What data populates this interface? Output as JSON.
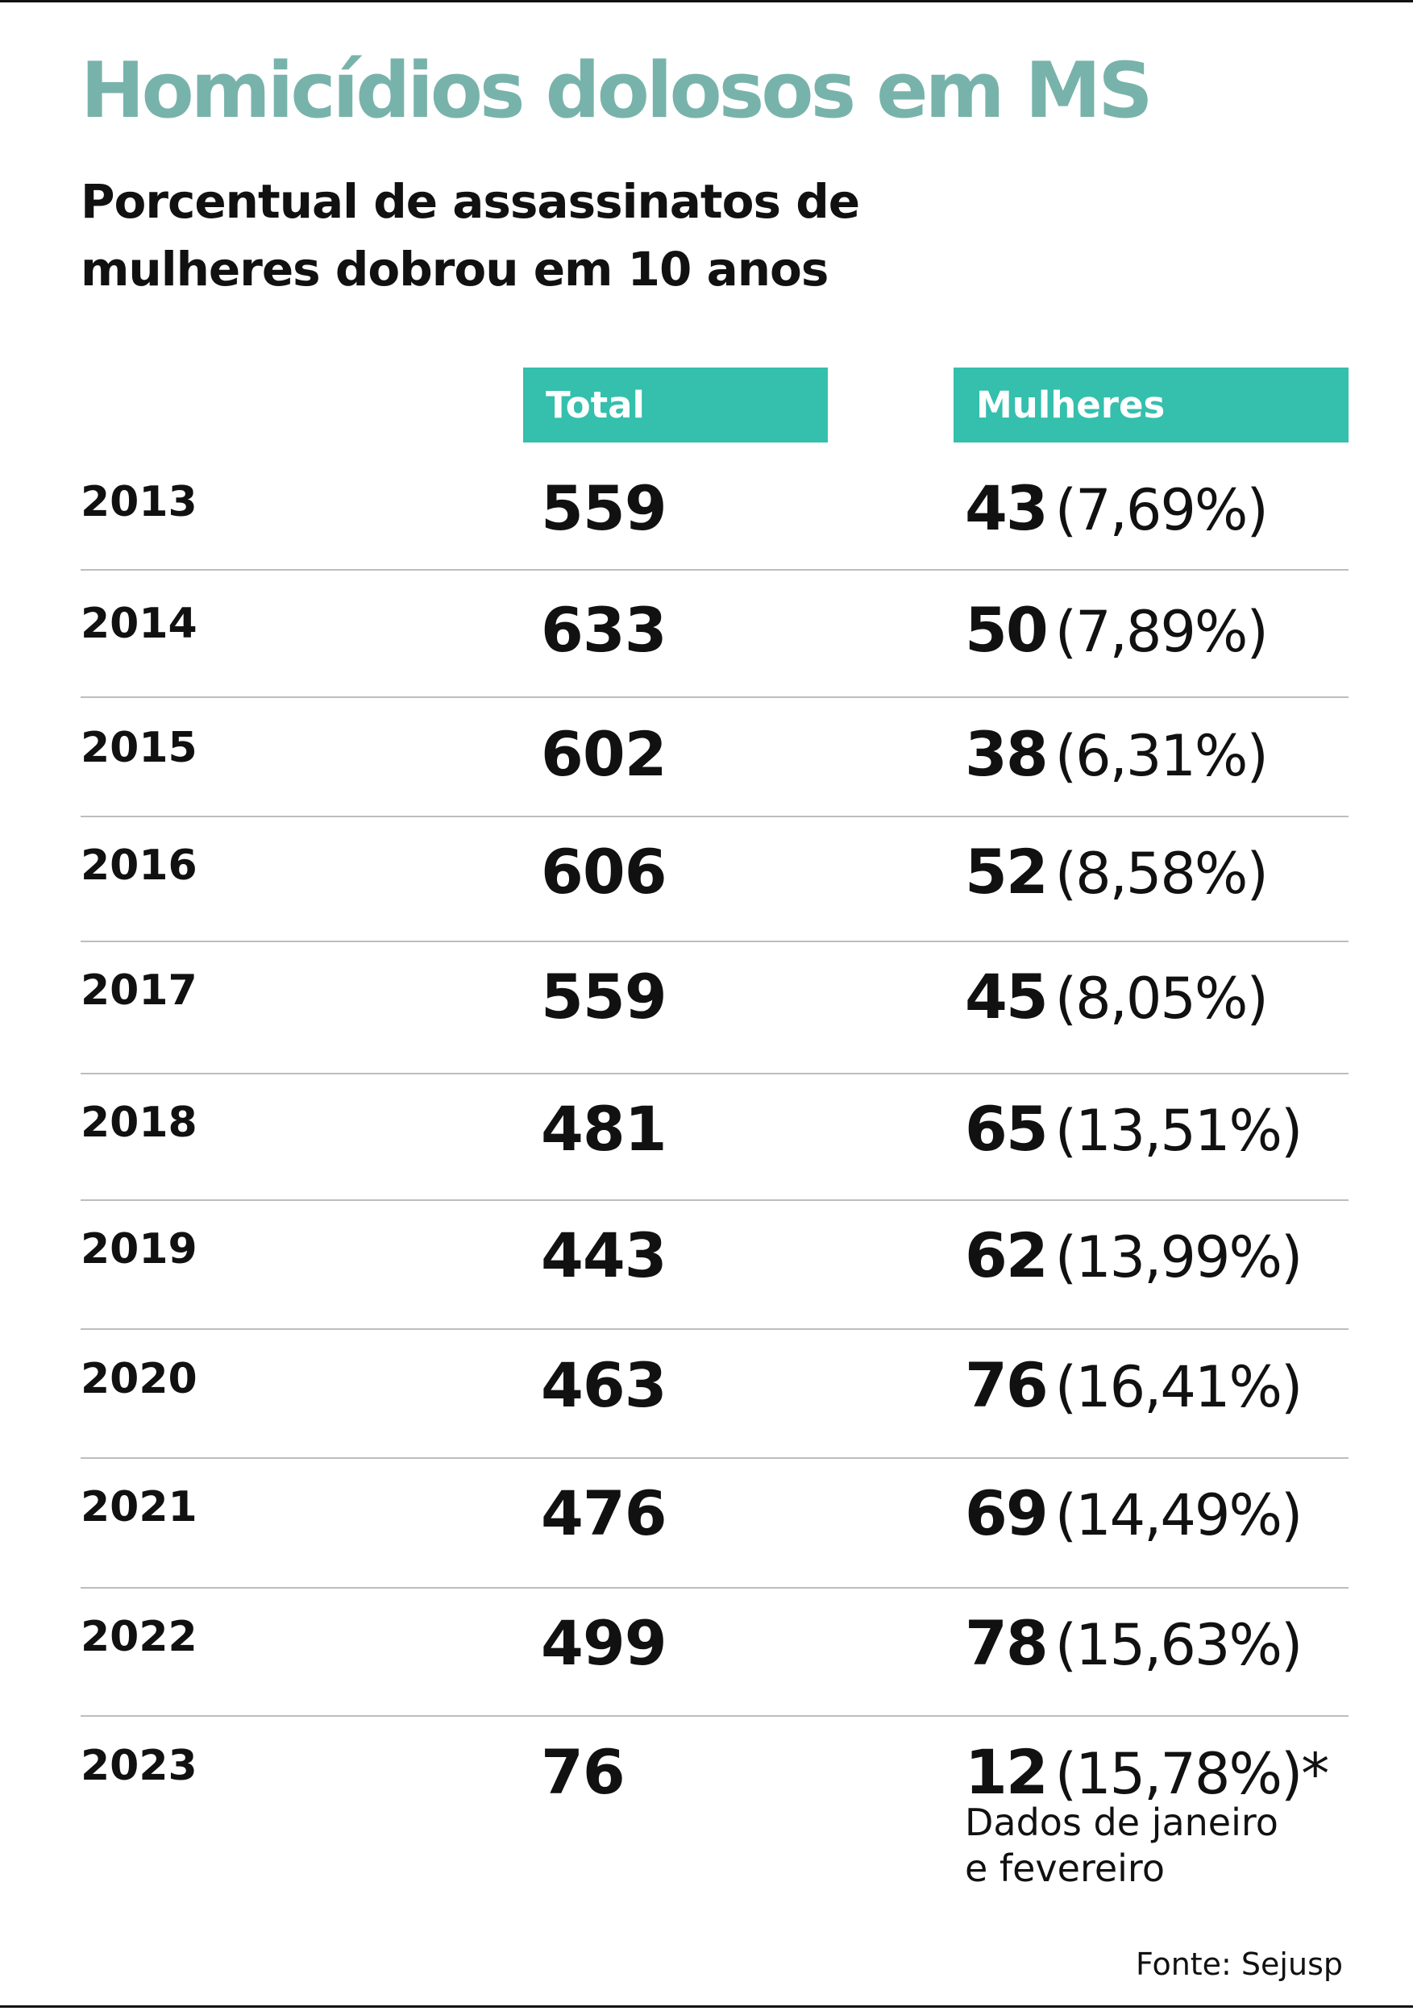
{
  "colors": {
    "title": "#78b3ab",
    "header_bg": "#35bfad",
    "text": "#111111",
    "divider": "#bdbdbd"
  },
  "title": "Homicídios dolosos em MS",
  "subtitle_line1": "Porcentual de assassinatos de",
  "subtitle_line2": "mulheres dobrou em 10 anos",
  "source": "Fonte: Sejusp",
  "chart_data": {
    "type": "table",
    "title": "Homicídios dolosos em MS",
    "subtitle": "Porcentual de assassinatos de mulheres dobrou em 10 anos",
    "columns": [
      "Total",
      "Mulheres"
    ],
    "rows": [
      {
        "year": "2013",
        "total": "559",
        "women": "43",
        "pct": "(7,69%)"
      },
      {
        "year": "2014",
        "total": "633",
        "women": "50",
        "pct": "(7,89%)"
      },
      {
        "year": "2015",
        "total": "602",
        "women": "38",
        "pct": "(6,31%)"
      },
      {
        "year": "2016",
        "total": "606",
        "women": "52",
        "pct": "(8,58%)"
      },
      {
        "year": "2017",
        "total": "559",
        "women": "45",
        "pct": "(8,05%)"
      },
      {
        "year": "2018",
        "total": "481",
        "women": "65",
        "pct": "(13,51%)"
      },
      {
        "year": "2019",
        "total": "443",
        "women": "62",
        "pct": "(13,99%)"
      },
      {
        "year": "2020",
        "total": "463",
        "women": "76",
        "pct": "(16,41%)"
      },
      {
        "year": "2021",
        "total": "476",
        "women": "69",
        "pct": "(14,49%)"
      },
      {
        "year": "2022",
        "total": "499",
        "women": "78",
        "pct": "(15,63%)"
      },
      {
        "year": "2023",
        "total": "76",
        "women": "12",
        "pct": "(15,78%)*"
      }
    ],
    "note_line1": "Dados de janeiro",
    "note_line2": "e fevereiro"
  }
}
